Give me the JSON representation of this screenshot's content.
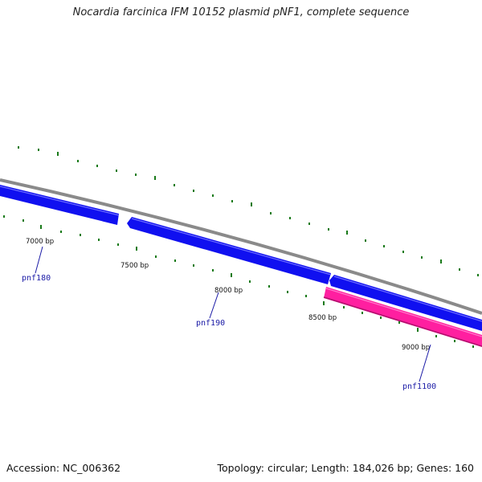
{
  "title": "Nocardia farcinica IFM 10152 plasmid pNF1, complete sequence",
  "accession": "Accession: NC_006362",
  "summary": "Topology: circular; Length: 184,026 bp; Genes: 160",
  "colors": {
    "backbone": "#8a8a8a",
    "forward_gene": "#1010f0",
    "reverse_gene": "#ff1fa0",
    "tick": "#1a7a1a",
    "label_line": "#1a1aa6"
  },
  "ticks": [
    {
      "label": "7000 bp"
    },
    {
      "label": "7500 bp"
    },
    {
      "label": "8000 bp"
    },
    {
      "label": "8500 bp"
    },
    {
      "label": "9000 bp"
    }
  ],
  "genes": [
    {
      "name": "pnf180",
      "strand": "forward"
    },
    {
      "name": "pnf190",
      "strand": "forward"
    },
    {
      "name": "pnf1100",
      "strand": "reverse"
    }
  ]
}
